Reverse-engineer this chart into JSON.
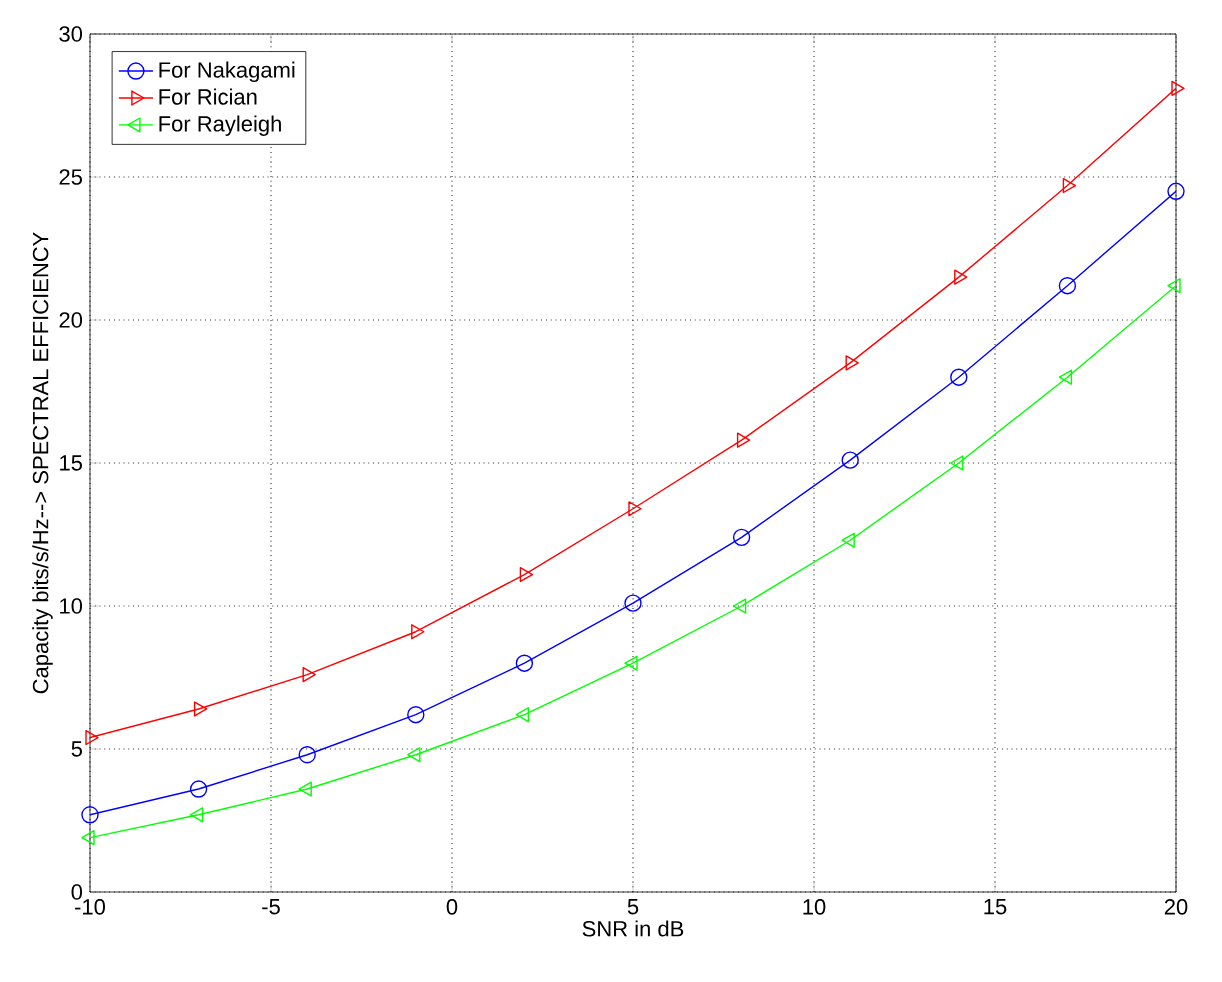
{
  "chart_data": {
    "type": "line",
    "xlabel": "SNR in dB",
    "ylabel": "Capacity bits/s/Hz--> SPECTRAL EFFICIENCY",
    "x": [
      -10,
      -7,
      -4,
      -1,
      2,
      5,
      8,
      11,
      14,
      17,
      20
    ],
    "series": [
      {
        "name": "For Nakagami",
        "color": "#0000ff",
        "marker": "circle",
        "values": [
          2.7,
          3.6,
          4.8,
          6.2,
          8.0,
          10.1,
          12.4,
          15.1,
          18.0,
          21.2,
          24.5
        ]
      },
      {
        "name": "For Rician",
        "color": "#ff0000",
        "marker": "triangle-right",
        "values": [
          5.4,
          6.4,
          7.6,
          9.1,
          11.1,
          13.4,
          15.8,
          18.5,
          21.5,
          24.7,
          28.1
        ]
      },
      {
        "name": "For Rayleigh",
        "color": "#00ff00",
        "marker": "triangle-left",
        "values": [
          1.9,
          2.7,
          3.6,
          4.8,
          6.2,
          8.0,
          10.0,
          12.3,
          15.0,
          18.0,
          21.2
        ]
      }
    ],
    "xlim": [
      -10,
      20
    ],
    "ylim": [
      0,
      30
    ],
    "xticks": [
      -10,
      -5,
      0,
      5,
      10,
      15,
      20
    ],
    "yticks": [
      0,
      5,
      10,
      15,
      20,
      25,
      30
    ],
    "grid": true,
    "legend": "top left",
    "line_style": "solid"
  }
}
